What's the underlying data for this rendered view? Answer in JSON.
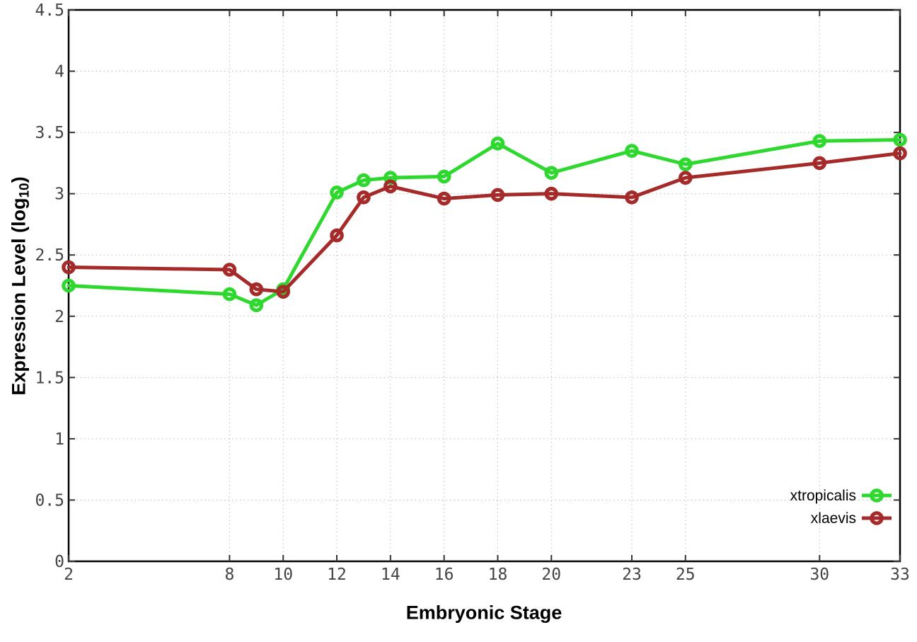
{
  "chart_data": {
    "type": "line",
    "x": [
      2,
      8,
      9,
      10,
      12,
      13,
      14,
      16,
      18,
      20,
      23,
      25,
      30,
      33
    ],
    "series": [
      {
        "name": "xtropicalis",
        "color": "#2fd82f",
        "values": [
          2.25,
          2.18,
          2.09,
          2.22,
          3.01,
          3.11,
          3.13,
          3.14,
          3.41,
          3.17,
          3.35,
          3.24,
          3.43,
          3.44
        ]
      },
      {
        "name": "xlaevis",
        "color": "#a52a2a",
        "values": [
          2.4,
          2.38,
          2.22,
          2.2,
          2.66,
          2.97,
          3.06,
          2.96,
          2.99,
          3.0,
          2.97,
          3.13,
          3.25,
          3.33
        ]
      }
    ],
    "xlabel": "Embryonic Stage",
    "ylabel": "Expression Level (log10)",
    "ylabel_parts": {
      "prefix": "Expression Level (log",
      "subscript": "10",
      "suffix": ")"
    },
    "xlim": [
      2,
      33
    ],
    "ylim": [
      0,
      4.5
    ],
    "x_ticks": [
      2,
      8,
      10,
      12,
      14,
      16,
      18,
      20,
      23,
      25,
      30,
      33
    ],
    "y_ticks": [
      0,
      0.5,
      1,
      1.5,
      2,
      2.5,
      3,
      3.5,
      4,
      4.5
    ],
    "grid": true,
    "legend_position": "bottom-right",
    "marker": "open-circle",
    "colors": {
      "background": "#ffffff",
      "plot_border": "#000000",
      "grid": "#bbbbbb",
      "tick": "#333333",
      "tick_label": "#444444",
      "title": "#000000"
    }
  }
}
